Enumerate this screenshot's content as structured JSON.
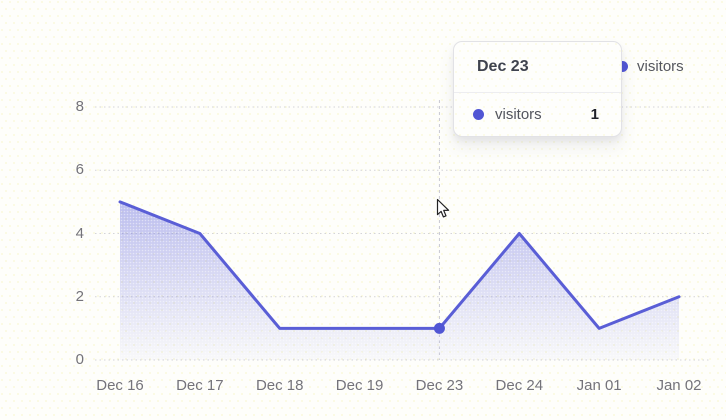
{
  "chart_data": {
    "type": "area",
    "title": "",
    "xlabel": "",
    "ylabel": "",
    "categories": [
      "Dec 16",
      "Dec 17",
      "Dec 18",
      "Dec 19",
      "Dec 23",
      "Dec 24",
      "Jan 01",
      "Jan 02"
    ],
    "series": [
      {
        "name": "visitors",
        "values": [
          5,
          4,
          1,
          1,
          1,
          4,
          1,
          2
        ]
      }
    ],
    "ylim": [
      0,
      8
    ],
    "yticks": [
      0,
      2,
      4,
      6,
      8
    ],
    "grid": true,
    "legend_position": "top-right",
    "highlighted_point": {
      "category": "Dec 23",
      "series": "visitors",
      "value": 1,
      "index": 4
    }
  },
  "legend": {
    "label": "visitors"
  },
  "tooltip": {
    "title": "Dec 23",
    "row_label": "visitors",
    "row_value": "1"
  },
  "colors": {
    "line": "#5a5ed6",
    "area_fill": "#6a6ede",
    "active_dot": "#5156d4",
    "legend_dot": "#5156d4",
    "grid_line": "#d4d4d8",
    "crosshair": "#c9c9d2",
    "axis_text": "#74737a",
    "background_dot": "#f2efa0"
  }
}
